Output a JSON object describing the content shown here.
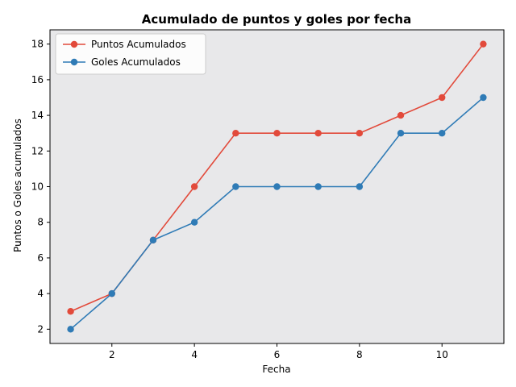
{
  "chart_data": {
    "type": "line",
    "title": "Acumulado de puntos y goles por fecha",
    "xlabel": "Fecha",
    "ylabel": "Puntos o Goles acumulados",
    "x": [
      1,
      2,
      3,
      4,
      5,
      6,
      7,
      8,
      9,
      10,
      11
    ],
    "xlim": [
      0.5,
      11.5
    ],
    "ylim": [
      1.2,
      18.8
    ],
    "xticks": [
      2,
      4,
      6,
      8,
      10
    ],
    "yticks": [
      2,
      4,
      6,
      8,
      10,
      12,
      14,
      16,
      18
    ],
    "grid": false,
    "legend_position": "top-left",
    "plot_background": "#e8e8ea",
    "series": [
      {
        "name": "Puntos Acumulados",
        "color": "#e24a3b",
        "values": [
          3,
          4,
          7,
          10,
          13,
          13,
          13,
          13,
          14,
          15,
          18
        ]
      },
      {
        "name": "Goles Acumulados",
        "color": "#2f7bb6",
        "values": [
          2,
          4,
          7,
          8,
          10,
          10,
          10,
          10,
          13,
          13,
          15
        ]
      }
    ]
  }
}
